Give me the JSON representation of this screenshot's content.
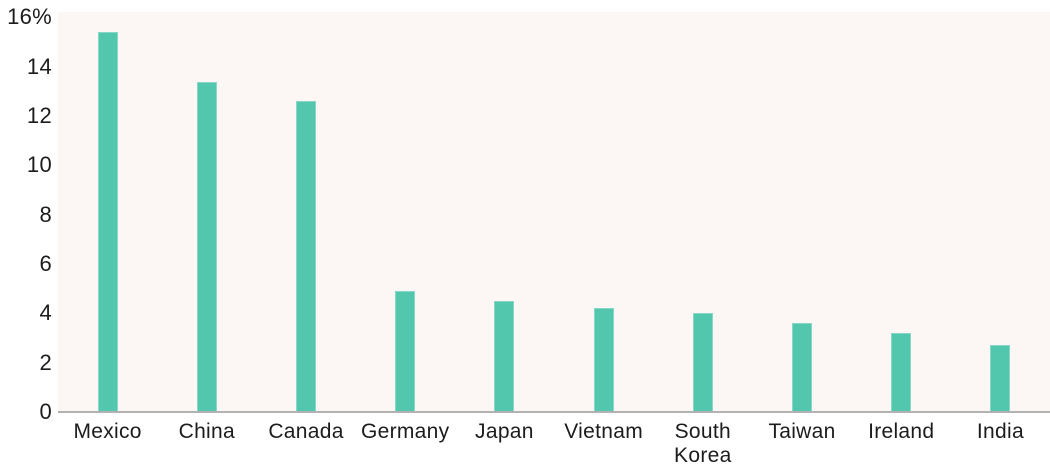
{
  "chart_data": {
    "type": "bar",
    "title": "",
    "xlabel": "",
    "ylabel": "",
    "unit": "%",
    "categories": [
      "Mexico",
      "China",
      "Canada",
      "Germany",
      "Japan",
      "Vietnam",
      "South Korea",
      "Taiwan",
      "Ireland",
      "India"
    ],
    "values": [
      15.4,
      13.4,
      12.6,
      4.9,
      4.5,
      4.2,
      4.0,
      3.6,
      3.2,
      2.7
    ],
    "ylim": [
      0,
      16
    ],
    "y_tick_step": 2,
    "y_tick_labels": [
      "0",
      "2",
      "4",
      "6",
      "8",
      "10",
      "12",
      "14",
      "16%"
    ],
    "grid": "off",
    "legend": "none"
  },
  "colors": {
    "bar": "#53C6AE",
    "plot_background": "#FCF7F4",
    "axis_line": "#B3B1B1",
    "text": "#1C1C1C",
    "page_background": "#FFFFFF"
  }
}
